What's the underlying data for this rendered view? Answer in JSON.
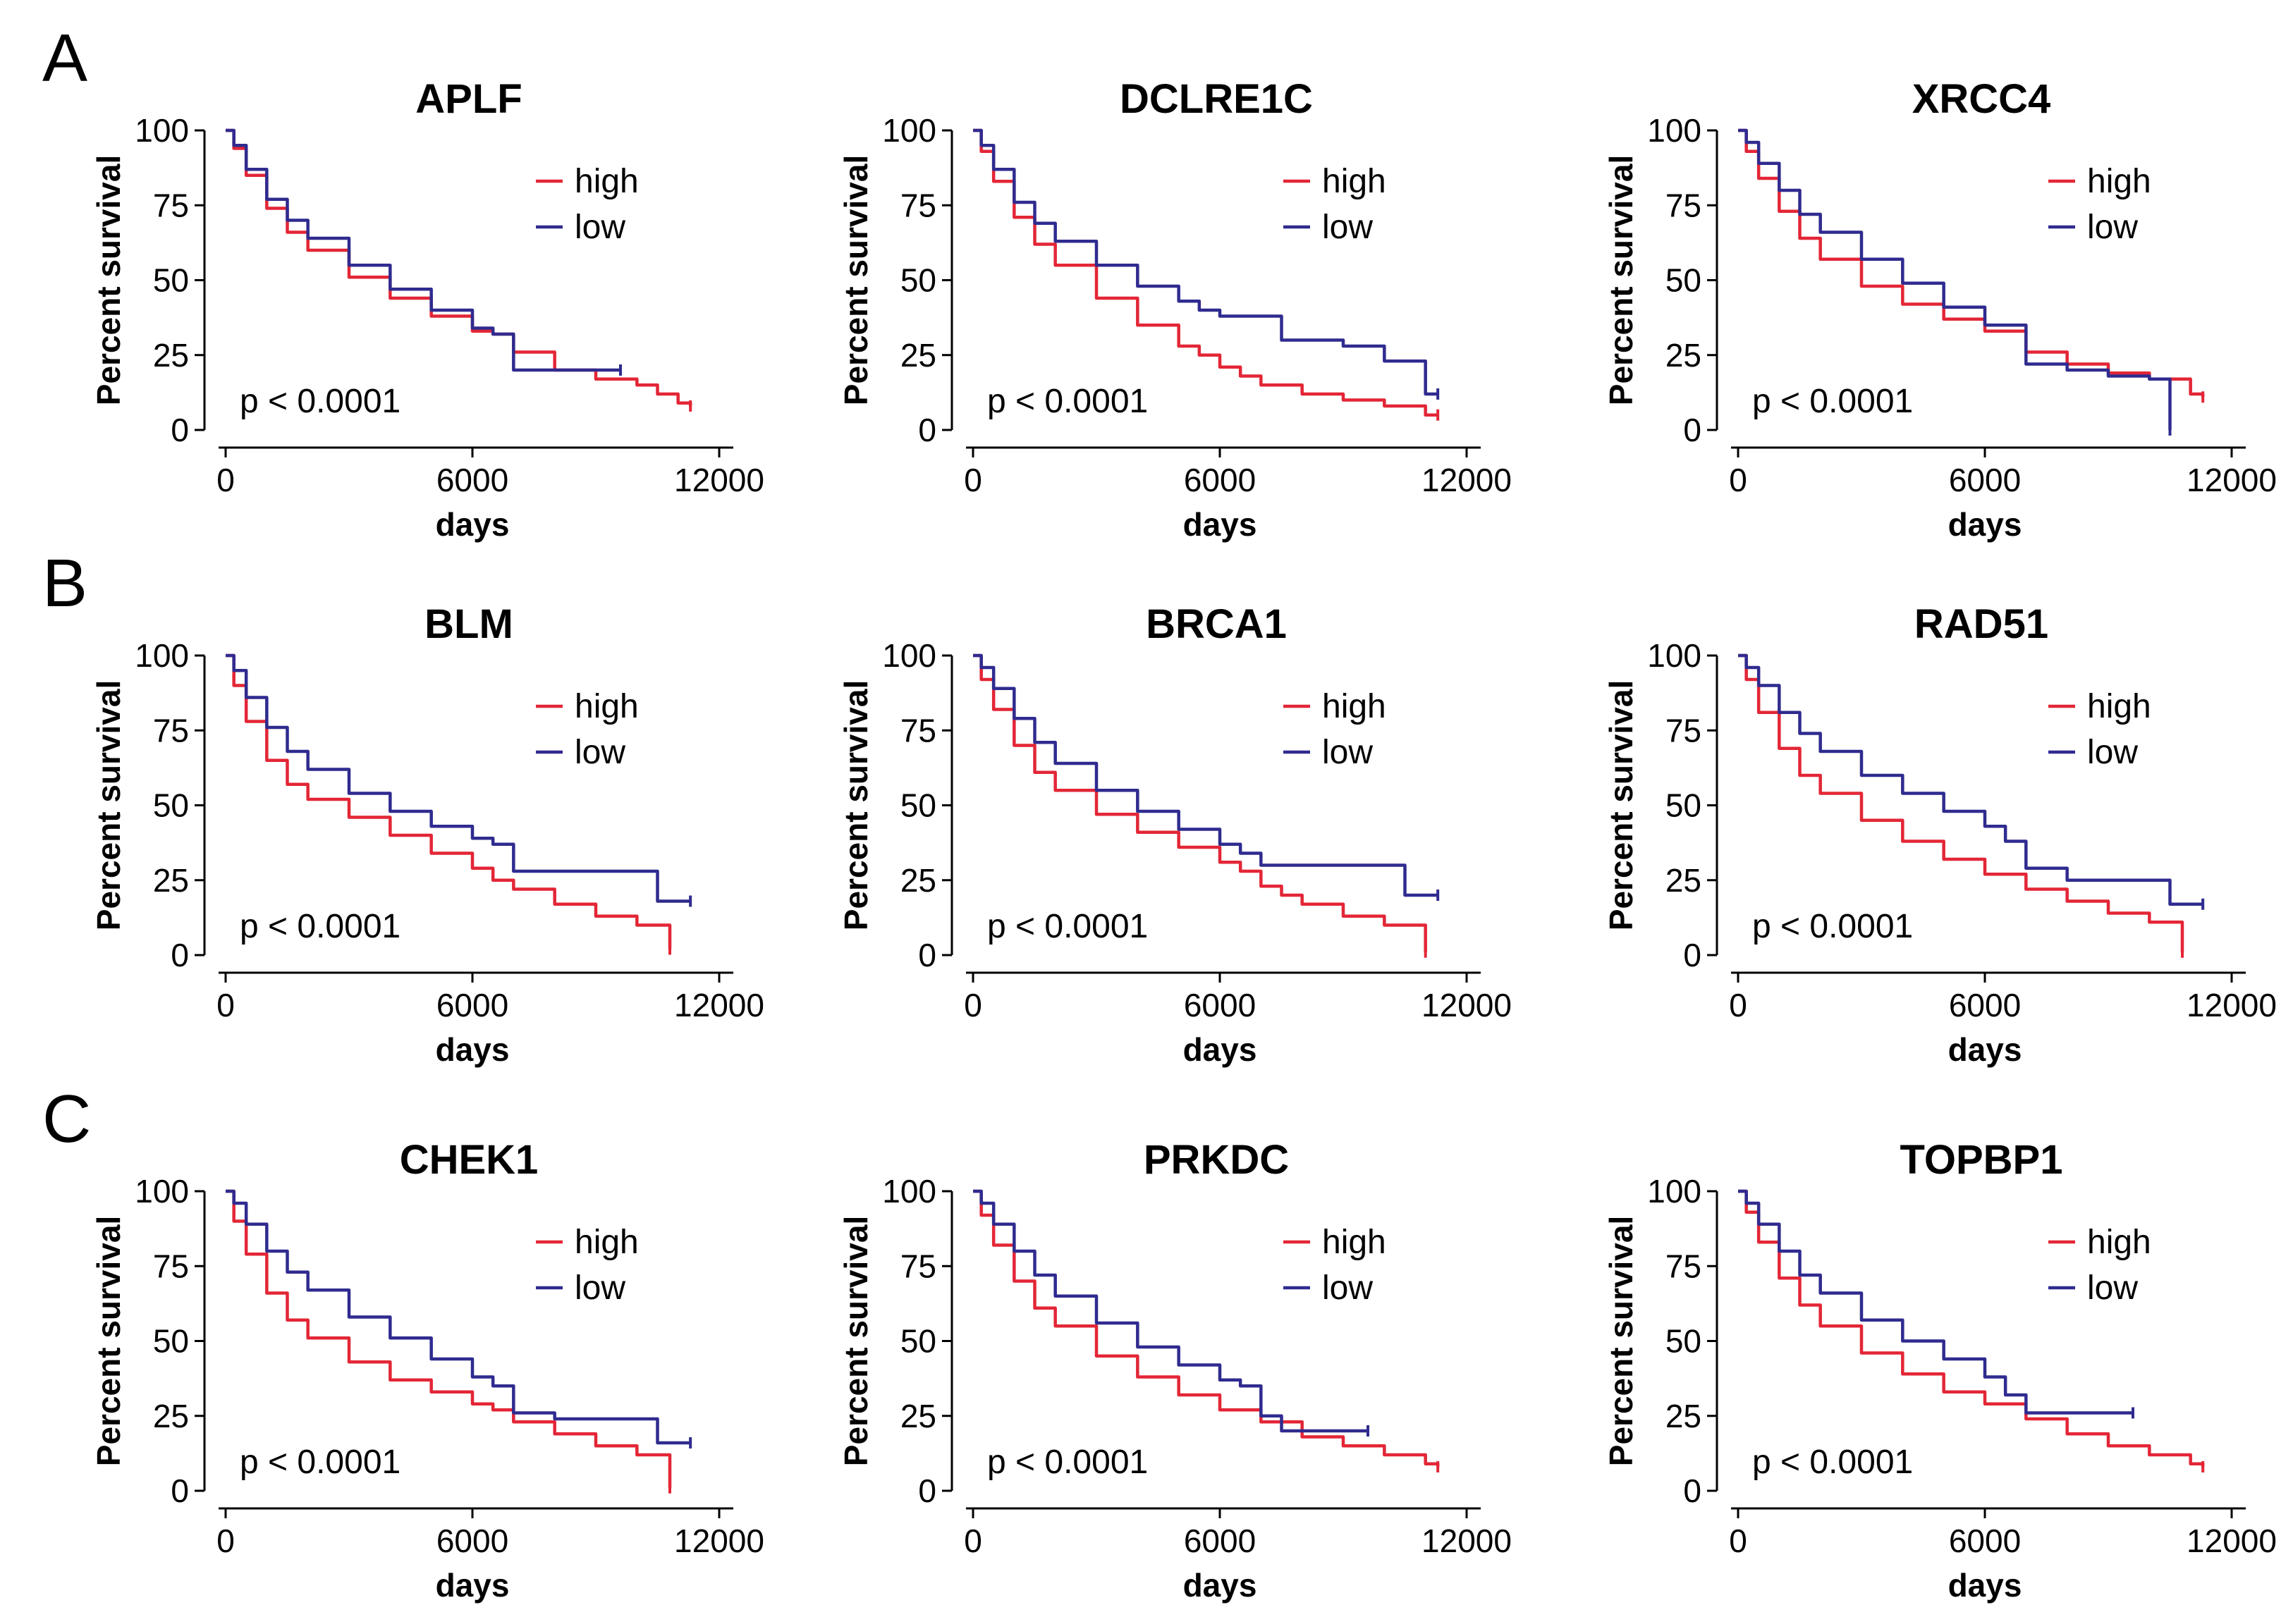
{
  "panel_letters": [
    "A",
    "B",
    "C"
  ],
  "colors": {
    "high": "#e32636",
    "low": "#2f2b8f"
  },
  "chart_data": [
    {
      "type": "line",
      "title": "APLF",
      "xlabel": "days",
      "ylabel": "Percent survival",
      "xlim": [
        0,
        12000
      ],
      "ylim": [
        0,
        100
      ],
      "xticks": [
        "0",
        "6000",
        "12000"
      ],
      "yticks": [
        "0",
        "25",
        "50",
        "75",
        "100"
      ],
      "legend": [
        "high",
        "low"
      ],
      "annotation": "p < 0.0001",
      "series": [
        {
          "name": "high",
          "x": [
            0,
            200,
            500,
            1000,
            1500,
            2000,
            3000,
            4000,
            5000,
            6000,
            6500,
            7000,
            8000,
            9000,
            10000,
            10500,
            11000,
            11300
          ],
          "values": [
            100,
            94,
            85,
            74,
            66,
            60,
            51,
            44,
            38,
            33,
            32,
            26,
            20,
            17,
            15,
            12,
            9,
            8
          ]
        },
        {
          "name": "low",
          "x": [
            0,
            200,
            500,
            1000,
            1500,
            2000,
            3000,
            4000,
            5000,
            6000,
            6500,
            7000,
            8000,
            9000,
            9600
          ],
          "values": [
            100,
            95,
            87,
            77,
            70,
            64,
            55,
            47,
            40,
            34,
            32,
            20,
            20,
            20,
            20
          ]
        }
      ]
    },
    {
      "type": "line",
      "title": "DCLRE1C",
      "xlabel": "days",
      "ylabel": "Percent survival",
      "xlim": [
        0,
        12000
      ],
      "ylim": [
        0,
        100
      ],
      "xticks": [
        "0",
        "6000",
        "12000"
      ],
      "yticks": [
        "0",
        "25",
        "50",
        "75",
        "100"
      ],
      "legend": [
        "high",
        "low"
      ],
      "annotation": "p < 0.0001",
      "series": [
        {
          "name": "high",
          "x": [
            0,
            200,
            500,
            1000,
            1500,
            2000,
            3000,
            4000,
            5000,
            5500,
            6000,
            6500,
            7000,
            8000,
            9000,
            10000,
            11000,
            11300
          ],
          "values": [
            100,
            93,
            83,
            71,
            62,
            55,
            44,
            35,
            28,
            25,
            21,
            18,
            15,
            12,
            10,
            8,
            5,
            5
          ]
        },
        {
          "name": "low",
          "x": [
            0,
            200,
            500,
            1000,
            1500,
            2000,
            3000,
            4000,
            5000,
            5500,
            6000,
            7000,
            7500,
            8000,
            9000,
            10000,
            11000,
            11300
          ],
          "values": [
            100,
            95,
            87,
            76,
            69,
            63,
            55,
            48,
            43,
            40,
            38,
            38,
            30,
            30,
            28,
            23,
            12,
            12
          ]
        }
      ]
    },
    {
      "type": "line",
      "title": "XRCC4",
      "xlabel": "days",
      "ylabel": "Percent survival",
      "xlim": [
        0,
        12000
      ],
      "ylim": [
        0,
        100
      ],
      "xticks": [
        "0",
        "6000",
        "12000"
      ],
      "yticks": [
        "0",
        "25",
        "50",
        "75",
        "100"
      ],
      "legend": [
        "high",
        "low"
      ],
      "annotation": "p < 0.0001",
      "series": [
        {
          "name": "high",
          "x": [
            0,
            200,
            500,
            1000,
            1500,
            2000,
            3000,
            4000,
            5000,
            6000,
            7000,
            8000,
            9000,
            10000,
            11000,
            11300
          ],
          "values": [
            100,
            93,
            84,
            73,
            64,
            57,
            48,
            42,
            37,
            33,
            26,
            22,
            19,
            17,
            12,
            11
          ]
        },
        {
          "name": "low",
          "x": [
            0,
            200,
            500,
            1000,
            1500,
            2000,
            3000,
            4000,
            5000,
            6000,
            7000,
            8000,
            9000,
            10000,
            10500,
            10500
          ],
          "values": [
            100,
            96,
            89,
            80,
            72,
            66,
            57,
            49,
            41,
            35,
            22,
            20,
            18,
            17,
            17,
            0
          ]
        }
      ]
    },
    {
      "type": "line",
      "title": "BLM",
      "xlabel": "days",
      "ylabel": "Percent survival",
      "xlim": [
        0,
        12000
      ],
      "ylim": [
        0,
        100
      ],
      "xticks": [
        "0",
        "6000",
        "12000"
      ],
      "yticks": [
        "0",
        "25",
        "50",
        "75",
        "100"
      ],
      "legend": [
        "high",
        "low"
      ],
      "annotation": "p < 0.0001",
      "series": [
        {
          "name": "high",
          "x": [
            0,
            200,
            500,
            1000,
            1500,
            2000,
            3000,
            4000,
            5000,
            6000,
            6500,
            7000,
            8000,
            9000,
            10000,
            10800,
            10800
          ],
          "values": [
            100,
            90,
            78,
            65,
            57,
            52,
            46,
            40,
            34,
            29,
            25,
            22,
            17,
            13,
            10,
            8,
            2
          ]
        },
        {
          "name": "low",
          "x": [
            0,
            200,
            500,
            1000,
            1500,
            2000,
            3000,
            4000,
            5000,
            6000,
            6500,
            7000,
            8000,
            9000,
            10000,
            10500,
            11300
          ],
          "values": [
            100,
            95,
            86,
            76,
            68,
            62,
            54,
            48,
            43,
            39,
            37,
            28,
            28,
            28,
            28,
            18,
            18
          ]
        }
      ]
    },
    {
      "type": "line",
      "title": "BRCA1",
      "xlabel": "days",
      "ylabel": "Percent survival",
      "xlim": [
        0,
        12000
      ],
      "ylim": [
        0,
        100
      ],
      "xticks": [
        "0",
        "6000",
        "12000"
      ],
      "yticks": [
        "0",
        "25",
        "50",
        "75",
        "100"
      ],
      "legend": [
        "high",
        "low"
      ],
      "annotation": "p < 0.0001",
      "series": [
        {
          "name": "high",
          "x": [
            0,
            200,
            500,
            1000,
            1500,
            2000,
            3000,
            4000,
            5000,
            6000,
            6500,
            7000,
            7500,
            8000,
            9000,
            10000,
            11000,
            11000
          ],
          "values": [
            100,
            92,
            82,
            70,
            61,
            55,
            47,
            41,
            36,
            31,
            28,
            23,
            20,
            17,
            13,
            10,
            8,
            1
          ]
        },
        {
          "name": "low",
          "x": [
            0,
            200,
            500,
            1000,
            1500,
            2000,
            3000,
            4000,
            5000,
            6000,
            6500,
            7000,
            8000,
            9000,
            10000,
            10500,
            11300
          ],
          "values": [
            100,
            96,
            89,
            79,
            71,
            64,
            55,
            48,
            42,
            37,
            34,
            30,
            30,
            30,
            30,
            20,
            20
          ]
        }
      ]
    },
    {
      "type": "line",
      "title": "RAD51",
      "xlabel": "days",
      "ylabel": "Percent survival",
      "xlim": [
        0,
        12000
      ],
      "ylim": [
        0,
        100
      ],
      "xticks": [
        "0",
        "6000",
        "12000"
      ],
      "yticks": [
        "0",
        "25",
        "50",
        "75",
        "100"
      ],
      "legend": [
        "high",
        "low"
      ],
      "annotation": "p < 0.0001",
      "series": [
        {
          "name": "high",
          "x": [
            0,
            200,
            500,
            1000,
            1500,
            2000,
            3000,
            4000,
            5000,
            6000,
            7000,
            8000,
            9000,
            10000,
            10800,
            10800
          ],
          "values": [
            100,
            92,
            81,
            69,
            60,
            54,
            45,
            38,
            32,
            27,
            22,
            18,
            14,
            11,
            10,
            1
          ]
        },
        {
          "name": "low",
          "x": [
            0,
            200,
            500,
            1000,
            1500,
            2000,
            3000,
            4000,
            5000,
            6000,
            6500,
            7000,
            8000,
            9000,
            10000,
            10500,
            11300
          ],
          "values": [
            100,
            96,
            90,
            81,
            74,
            68,
            60,
            54,
            48,
            43,
            38,
            29,
            25,
            25,
            25,
            17,
            17
          ]
        }
      ]
    },
    {
      "type": "line",
      "title": "CHEK1",
      "xlabel": "days",
      "ylabel": "Percent survival",
      "xlim": [
        0,
        12000
      ],
      "ylim": [
        0,
        100
      ],
      "xticks": [
        "0",
        "6000",
        "12000"
      ],
      "yticks": [
        "0",
        "25",
        "50",
        "75",
        "100"
      ],
      "legend": [
        "high",
        "low"
      ],
      "annotation": "p < 0.0001",
      "series": [
        {
          "name": "high",
          "x": [
            0,
            200,
            500,
            1000,
            1500,
            2000,
            3000,
            4000,
            5000,
            6000,
            6500,
            7000,
            8000,
            9000,
            10000,
            10800,
            10800
          ],
          "values": [
            100,
            90,
            79,
            66,
            57,
            51,
            43,
            37,
            33,
            29,
            27,
            23,
            19,
            15,
            12,
            10,
            1
          ]
        },
        {
          "name": "low",
          "x": [
            0,
            200,
            500,
            1000,
            1500,
            2000,
            3000,
            4000,
            5000,
            6000,
            6500,
            7000,
            8000,
            9000,
            10000,
            10500,
            11300
          ],
          "values": [
            100,
            96,
            89,
            80,
            73,
            67,
            58,
            51,
            44,
            38,
            35,
            26,
            24,
            24,
            24,
            16,
            16
          ]
        }
      ]
    },
    {
      "type": "line",
      "title": "PRKDC",
      "xlabel": "days",
      "ylabel": "Percent survival",
      "xlim": [
        0,
        12000
      ],
      "ylim": [
        0,
        100
      ],
      "xticks": [
        "0",
        "6000",
        "12000"
      ],
      "yticks": [
        "0",
        "25",
        "50",
        "75",
        "100"
      ],
      "legend": [
        "high",
        "low"
      ],
      "annotation": "p < 0.0001",
      "series": [
        {
          "name": "high",
          "x": [
            0,
            200,
            500,
            1000,
            1500,
            2000,
            3000,
            4000,
            5000,
            6000,
            7000,
            8000,
            9000,
            10000,
            11000,
            11300
          ],
          "values": [
            100,
            92,
            82,
            70,
            61,
            55,
            45,
            38,
            32,
            27,
            23,
            18,
            15,
            12,
            9,
            8
          ]
        },
        {
          "name": "low",
          "x": [
            0,
            200,
            500,
            1000,
            1500,
            2000,
            3000,
            4000,
            5000,
            6000,
            6500,
            7000,
            7500,
            8000,
            9000,
            9600
          ],
          "values": [
            100,
            96,
            89,
            80,
            72,
            65,
            56,
            48,
            42,
            37,
            35,
            25,
            20,
            20,
            20,
            20
          ]
        }
      ]
    },
    {
      "type": "line",
      "title": "TOPBP1",
      "xlabel": "days",
      "ylabel": "Percent survival",
      "xlim": [
        0,
        12000
      ],
      "ylim": [
        0,
        100
      ],
      "xticks": [
        "0",
        "6000",
        "12000"
      ],
      "yticks": [
        "0",
        "25",
        "50",
        "75",
        "100"
      ],
      "legend": [
        "high",
        "low"
      ],
      "annotation": "p < 0.0001",
      "series": [
        {
          "name": "high",
          "x": [
            0,
            200,
            500,
            1000,
            1500,
            2000,
            3000,
            4000,
            5000,
            6000,
            7000,
            8000,
            9000,
            10000,
            11000,
            11300
          ],
          "values": [
            100,
            93,
            83,
            71,
            62,
            55,
            46,
            39,
            33,
            29,
            24,
            19,
            15,
            12,
            9,
            8
          ]
        },
        {
          "name": "low",
          "x": [
            0,
            200,
            500,
            1000,
            1500,
            2000,
            3000,
            4000,
            5000,
            6000,
            6500,
            7000,
            8000,
            9000,
            9600
          ],
          "values": [
            100,
            96,
            89,
            80,
            72,
            66,
            57,
            50,
            44,
            38,
            32,
            26,
            26,
            26,
            26
          ]
        }
      ]
    }
  ]
}
